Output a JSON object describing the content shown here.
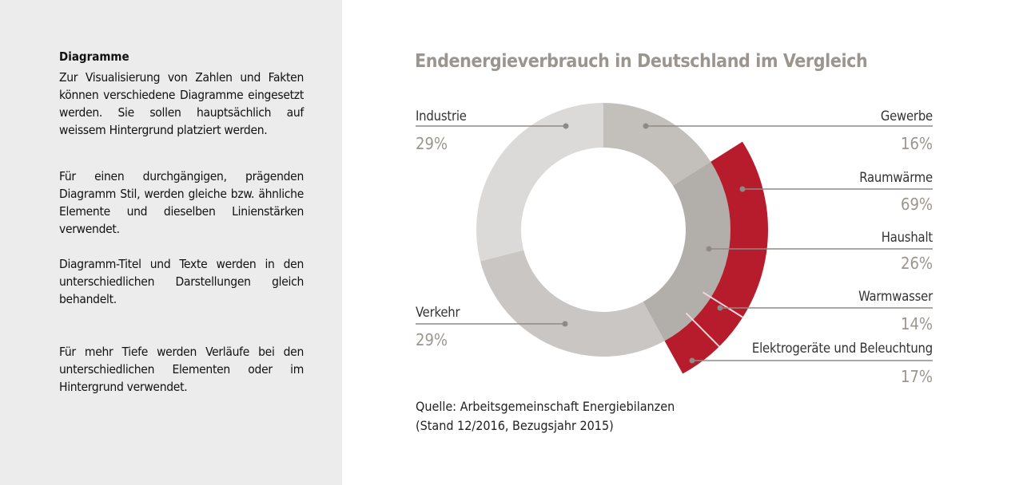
{
  "sidebar": {
    "heading": "Diagramme",
    "paragraphs": [
      "Zur Visualisierung von Zahlen und Fakten können verschiedene Diagramme eingesetzt werden. Sie sollen hauptsächlich auf weissem Hintergrund platziert werden.",
      "Für einen durchgängigen, prägenden Diagramm Stil, werden gleiche bzw. ähnliche Elemente und dieselben Linienstärken verwendet.",
      "Diagramm-Titel und Texte werden in den unterschiedlichen Darstellungen gleich behandelt.",
      "Für mehr Tiefe werden Verläufe bei den unterschiedlichen Elementen oder im Hintergrund verwendet."
    ]
  },
  "chart_data": {
    "type": "pie",
    "style": "donut",
    "title": "Endenergieverbrauch in Deutschland im Vergleich",
    "slices": [
      {
        "label": "Gewerbe",
        "value": 16,
        "display": "16%",
        "color": "#c3bfbb"
      },
      {
        "label": "Haushalt",
        "value": 26,
        "display": "26%",
        "color": "#b2aeaa"
      },
      {
        "label": "Verkehr",
        "value": 29,
        "display": "29%",
        "color": "#c9c6c3"
      },
      {
        "label": "Industrie",
        "value": 29,
        "display": "29%",
        "color": "#dcdad8"
      }
    ],
    "breakdown": {
      "of": "Haushalt",
      "color": "#b71c2c",
      "slices": [
        {
          "label": "Raumwärme",
          "value": 69,
          "display": "69%"
        },
        {
          "label": "Warmwasser",
          "value": 14,
          "display": "14%"
        },
        {
          "label": "Elektrogeräte und Beleuchtung",
          "value": 17,
          "display": "17%"
        }
      ]
    },
    "source": [
      "Quelle: Arbeitsgemeinschaft Energiebilanzen",
      "(Stand 12/2016, Bezugsjahr 2015)"
    ]
  }
}
